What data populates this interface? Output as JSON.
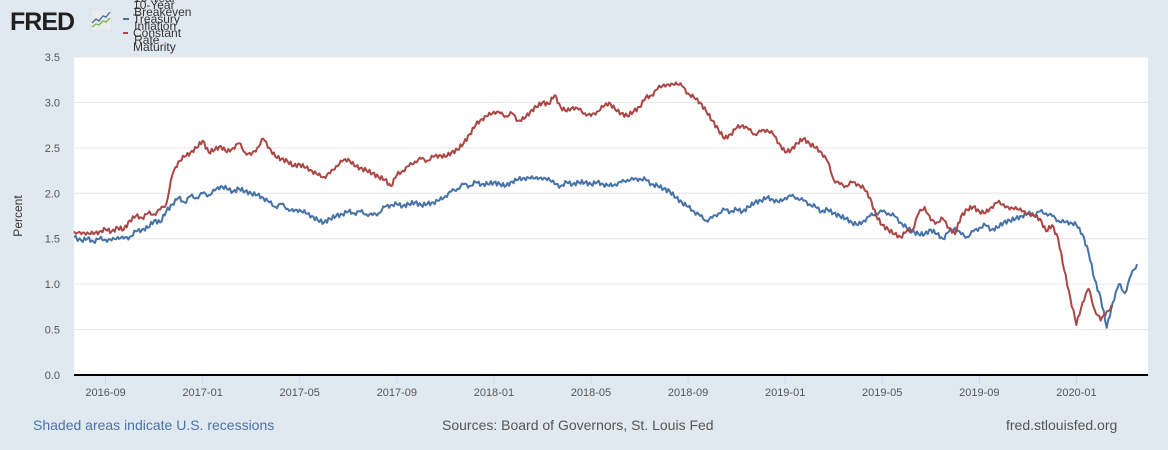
{
  "header": {
    "logo_text": "FRED",
    "logo_icon": "fred-chart-icon"
  },
  "footer": {
    "recession_note": "Shaded areas indicate U.S. recessions",
    "sources": "Sources: Board of Governors, St. Louis Fed",
    "site": "fred.stlouisfed.org"
  },
  "colors": {
    "background": "#e1e9f0",
    "plot_background": "#ffffff",
    "breakeven": "#4572a7",
    "treasury": "#aa4643",
    "grid": "#e6e6e6",
    "axis_line": "#000000"
  },
  "chart_data": {
    "type": "line",
    "title": "",
    "xlabel": "",
    "ylabel": "Percent",
    "ylim": [
      0,
      3.5
    ],
    "xlim": [
      "2016-07-22",
      "2020-03-30"
    ],
    "yticks": [
      "0.0",
      "0.5",
      "1.0",
      "1.5",
      "2.0",
      "2.5",
      "3.0",
      "3.5"
    ],
    "xticks": [
      "2016-09",
      "2017-01",
      "2017-05",
      "2017-09",
      "2018-01",
      "2018-05",
      "2018-09",
      "2019-01",
      "2019-05",
      "2019-09",
      "2020-01"
    ],
    "grid": true,
    "legend_position": "top-left",
    "x_unit": "months since 2016-07 (approximate weekly samples)",
    "x": [
      0.7,
      1.0,
      1.25,
      1.5,
      1.75,
      2.0,
      2.25,
      2.5,
      2.75,
      3.0,
      3.25,
      3.5,
      3.75,
      4.0,
      4.25,
      4.5,
      4.75,
      5.0,
      5.25,
      5.5,
      5.75,
      6.0,
      6.25,
      6.5,
      6.75,
      7.0,
      7.25,
      7.5,
      7.75,
      8.0,
      8.25,
      8.5,
      8.75,
      9.0,
      9.25,
      9.5,
      9.75,
      10.0,
      10.25,
      10.5,
      10.75,
      11.0,
      11.25,
      11.5,
      11.75,
      12.0,
      12.25,
      12.5,
      12.75,
      13.0,
      13.25,
      13.5,
      13.75,
      14.0,
      14.25,
      14.5,
      14.75,
      15.0,
      15.25,
      15.5,
      15.75,
      16.0,
      16.25,
      16.5,
      16.75,
      17.0,
      17.25,
      17.5,
      17.75,
      18.0,
      18.25,
      18.5,
      18.75,
      19.0,
      19.25,
      19.5,
      19.75,
      20.0,
      20.25,
      20.5,
      20.75,
      21.0,
      21.25,
      21.5,
      21.75,
      22.0,
      22.25,
      22.5,
      22.75,
      23.0,
      23.25,
      23.5,
      23.75,
      24.0,
      24.25,
      24.5,
      24.75,
      25.0,
      25.25,
      25.5,
      25.75,
      26.0,
      26.25,
      26.5,
      26.75,
      27.0,
      27.25,
      27.5,
      27.75,
      28.0,
      28.25,
      28.5,
      28.75,
      29.0,
      29.25,
      29.5,
      29.75,
      30.0,
      30.25,
      30.5,
      30.75,
      31.0,
      31.25,
      31.5,
      31.75,
      32.0,
      32.25,
      32.5,
      32.75,
      33.0,
      33.25,
      33.5,
      33.75,
      34.0,
      34.25,
      34.5,
      34.75,
      35.0,
      35.25,
      35.5,
      35.75,
      36.0,
      36.25,
      36.5,
      36.75,
      37.0,
      37.25,
      37.5,
      37.75,
      38.0,
      38.25,
      38.5,
      38.75,
      39.0,
      39.25,
      39.5,
      39.75,
      40.0,
      40.25,
      40.5,
      40.75,
      41.0,
      41.25,
      41.5,
      41.75,
      42.0,
      42.25,
      42.5,
      42.75,
      43.0,
      43.25,
      43.5,
      43.75,
      44.0,
      44.25,
      44.5,
      44.75,
      45.0
    ],
    "series": [
      {
        "name": "10-Year Breakeven Inflation Rate",
        "color": "#4572a7",
        "values": [
          1.52,
          1.48,
          1.5,
          1.47,
          1.5,
          1.49,
          1.48,
          1.52,
          1.5,
          1.52,
          1.58,
          1.6,
          1.62,
          1.7,
          1.68,
          1.8,
          1.88,
          1.95,
          1.9,
          1.97,
          1.95,
          2.0,
          1.98,
          2.03,
          2.08,
          2.05,
          2.02,
          2.05,
          2.02,
          2.0,
          1.98,
          1.95,
          1.9,
          1.85,
          1.88,
          1.83,
          1.8,
          1.82,
          1.78,
          1.75,
          1.7,
          1.68,
          1.72,
          1.75,
          1.77,
          1.8,
          1.78,
          1.8,
          1.77,
          1.76,
          1.78,
          1.85,
          1.87,
          1.88,
          1.86,
          1.88,
          1.9,
          1.87,
          1.88,
          1.9,
          1.92,
          1.97,
          2.02,
          2.05,
          2.1,
          2.08,
          2.12,
          2.1,
          2.1,
          2.12,
          2.1,
          2.08,
          2.13,
          2.15,
          2.17,
          2.16,
          2.18,
          2.15,
          2.17,
          2.1,
          2.08,
          2.12,
          2.1,
          2.12,
          2.12,
          2.1,
          2.12,
          2.1,
          2.08,
          2.1,
          2.12,
          2.15,
          2.15,
          2.16,
          2.15,
          2.1,
          2.08,
          2.05,
          2.02,
          1.95,
          1.9,
          1.85,
          1.8,
          1.75,
          1.7,
          1.73,
          1.78,
          1.82,
          1.8,
          1.82,
          1.8,
          1.85,
          1.9,
          1.92,
          1.95,
          1.93,
          1.9,
          1.95,
          1.97,
          1.95,
          1.92,
          1.88,
          1.85,
          1.8,
          1.82,
          1.78,
          1.75,
          1.72,
          1.68,
          1.65,
          1.7,
          1.75,
          1.78,
          1.8,
          1.78,
          1.75,
          1.68,
          1.62,
          1.58,
          1.55,
          1.55,
          1.6,
          1.55,
          1.5,
          1.58,
          1.62,
          1.55,
          1.52,
          1.58,
          1.62,
          1.65,
          1.6,
          1.62,
          1.68,
          1.7,
          1.72,
          1.75,
          1.78,
          1.76,
          1.8,
          1.78,
          1.75,
          1.7,
          1.68,
          1.68,
          1.65,
          1.55,
          1.35,
          1.05,
          0.85,
          0.52,
          0.8,
          1.0,
          0.9,
          1.1,
          1.22
        ]
      },
      {
        "name": "10-Year Treasury Constant Maturity Rate",
        "color": "#aa4643",
        "values": [
          1.58,
          1.55,
          1.57,
          1.55,
          1.58,
          1.6,
          1.58,
          1.62,
          1.6,
          1.7,
          1.75,
          1.73,
          1.78,
          1.77,
          1.82,
          1.88,
          2.2,
          2.35,
          2.4,
          2.45,
          2.5,
          2.58,
          2.45,
          2.48,
          2.52,
          2.45,
          2.5,
          2.55,
          2.45,
          2.42,
          2.5,
          2.6,
          2.5,
          2.4,
          2.38,
          2.35,
          2.3,
          2.32,
          2.28,
          2.25,
          2.2,
          2.18,
          2.22,
          2.3,
          2.35,
          2.38,
          2.3,
          2.28,
          2.25,
          2.22,
          2.18,
          2.15,
          2.08,
          2.2,
          2.25,
          2.3,
          2.35,
          2.38,
          2.36,
          2.4,
          2.42,
          2.4,
          2.45,
          2.48,
          2.55,
          2.65,
          2.75,
          2.82,
          2.85,
          2.9,
          2.88,
          2.85,
          2.88,
          2.8,
          2.82,
          2.9,
          2.95,
          3.0,
          2.98,
          3.08,
          2.95,
          2.9,
          2.95,
          2.92,
          2.88,
          2.85,
          2.9,
          2.95,
          3.0,
          2.92,
          2.88,
          2.85,
          2.9,
          2.95,
          3.05,
          3.08,
          3.15,
          3.2,
          3.18,
          3.22,
          3.18,
          3.1,
          3.05,
          3.0,
          2.9,
          2.8,
          2.7,
          2.6,
          2.65,
          2.72,
          2.75,
          2.7,
          2.65,
          2.68,
          2.7,
          2.65,
          2.55,
          2.45,
          2.48,
          2.55,
          2.6,
          2.55,
          2.5,
          2.45,
          2.35,
          2.15,
          2.1,
          2.08,
          2.12,
          2.1,
          2.05,
          1.95,
          1.75,
          1.65,
          1.6,
          1.55,
          1.52,
          1.58,
          1.6,
          1.78,
          1.85,
          1.7,
          1.68,
          1.72,
          1.62,
          1.55,
          1.75,
          1.82,
          1.85,
          1.8,
          1.78,
          1.85,
          1.9,
          1.88,
          1.82,
          1.85,
          1.8,
          1.78,
          1.75,
          1.72,
          1.58,
          1.65,
          1.5,
          1.15,
          0.85,
          0.55,
          0.8,
          0.95,
          0.72,
          0.6,
          0.7,
          0.75
        ]
      }
    ]
  }
}
